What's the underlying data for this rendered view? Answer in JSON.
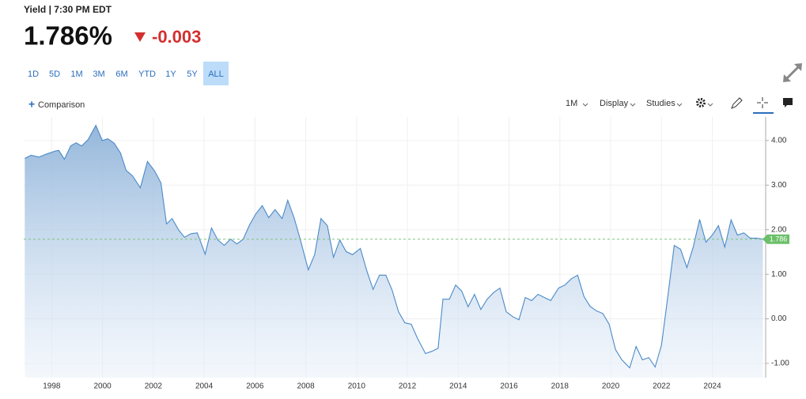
{
  "header": {
    "label": "Yield | 7:30 PM EDT",
    "price": "1.786%",
    "change": "-0.003"
  },
  "ranges": [
    "1D",
    "5D",
    "1M",
    "3M",
    "6M",
    "YTD",
    "1Y",
    "5Y",
    "ALL"
  ],
  "active_range": 8,
  "toolbar": {
    "comparison": "Comparison",
    "interval": "1M",
    "display": "Display",
    "studies": "Studies"
  },
  "chart_data": {
    "type": "area",
    "color": "#4a8ac8",
    "x": [
      1996.94,
      1997.19,
      1997.5,
      1997.81,
      1998.12,
      1998.28,
      1998.5,
      1998.75,
      1998.96,
      1999.18,
      1999.43,
      1999.74,
      1999.99,
      2000.21,
      2000.46,
      2000.71,
      2000.93,
      2001.18,
      2001.49,
      2001.77,
      2002.05,
      2002.3,
      2002.52,
      2002.74,
      2002.99,
      2003.23,
      2003.48,
      2003.73,
      2004.04,
      2004.29,
      2004.54,
      2004.79,
      2005.04,
      2005.29,
      2005.54,
      2005.79,
      2006.04,
      2006.29,
      2006.54,
      2006.79,
      2007.07,
      2007.29,
      2007.54,
      2007.79,
      2008.1,
      2008.35,
      2008.6,
      2008.85,
      2009.09,
      2009.34,
      2009.59,
      2009.84,
      2010.15,
      2010.4,
      2010.65,
      2010.9,
      2011.15,
      2011.4,
      2011.65,
      2011.9,
      2012.15,
      2012.4,
      2012.71,
      2012.96,
      2013.21,
      2013.4,
      2013.65,
      2013.9,
      2014.14,
      2014.39,
      2014.64,
      2014.89,
      2015.14,
      2015.39,
      2015.64,
      2015.89,
      2016.14,
      2016.39,
      2016.64,
      2016.89,
      2017.14,
      2017.39,
      2017.64,
      2017.95,
      2018.2,
      2018.45,
      2018.7,
      2018.95,
      2019.19,
      2019.44,
      2019.69,
      2019.94,
      2020.19,
      2020.44,
      2020.75,
      2021.0,
      2021.25,
      2021.5,
      2021.75,
      2022.0,
      2022.25,
      2022.5,
      2022.75,
      2023.0,
      2023.25,
      2023.5,
      2023.75,
      2024.0,
      2024.24,
      2024.49,
      2024.74,
      2024.99,
      2025.24,
      2025.49,
      2025.74,
      2025.99
    ],
    "values": [
      3.6,
      3.67,
      3.63,
      3.7,
      3.76,
      3.78,
      3.58,
      3.88,
      3.95,
      3.88,
      4.02,
      4.34,
      4.0,
      4.04,
      3.94,
      3.72,
      3.33,
      3.21,
      2.94,
      3.53,
      3.32,
      3.05,
      2.13,
      2.25,
      2.0,
      1.83,
      1.91,
      1.93,
      1.45,
      2.04,
      1.77,
      1.65,
      1.79,
      1.68,
      1.79,
      2.11,
      2.36,
      2.54,
      2.27,
      2.45,
      2.25,
      2.66,
      2.27,
      1.77,
      1.1,
      1.44,
      2.25,
      2.09,
      1.38,
      1.77,
      1.51,
      1.44,
      1.58,
      1.08,
      0.66,
      0.98,
      0.98,
      0.64,
      0.16,
      -0.09,
      -0.12,
      -0.44,
      -0.78,
      -0.73,
      -0.66,
      0.44,
      0.44,
      0.76,
      0.62,
      0.27,
      0.55,
      0.21,
      0.44,
      0.59,
      0.69,
      0.16,
      0.05,
      -0.02,
      0.48,
      0.41,
      0.55,
      0.48,
      0.41,
      0.69,
      0.76,
      0.9,
      0.98,
      0.5,
      0.28,
      0.18,
      0.12,
      -0.12,
      -0.69,
      -0.92,
      -1.1,
      -0.62,
      -0.92,
      -0.87,
      -1.08,
      -0.59,
      0.5,
      1.65,
      1.56,
      1.15,
      1.61,
      2.23,
      1.72,
      1.88,
      2.09,
      1.61,
      2.22,
      1.88,
      1.93,
      1.81,
      1.81,
      1.79
    ],
    "xlim": [
      1996.9,
      2026.1
    ],
    "xticks": [
      1998,
      2000,
      2002,
      2004,
      2006,
      2008,
      2010,
      2012,
      2014,
      2016,
      2018,
      2020,
      2022,
      2024
    ],
    "ylim": [
      -1.32,
      4.53
    ],
    "yticks": [
      {
        "value": 4,
        "label": "4.00"
      },
      {
        "value": 3,
        "label": "3.00"
      },
      {
        "value": 2,
        "label": "2.00"
      },
      {
        "value": 1,
        "label": "1.00"
      },
      {
        "value": 0,
        "label": "0.00"
      },
      {
        "value": -1,
        "label": "-1.00"
      }
    ],
    "last_value": 1.786,
    "grid": true
  }
}
